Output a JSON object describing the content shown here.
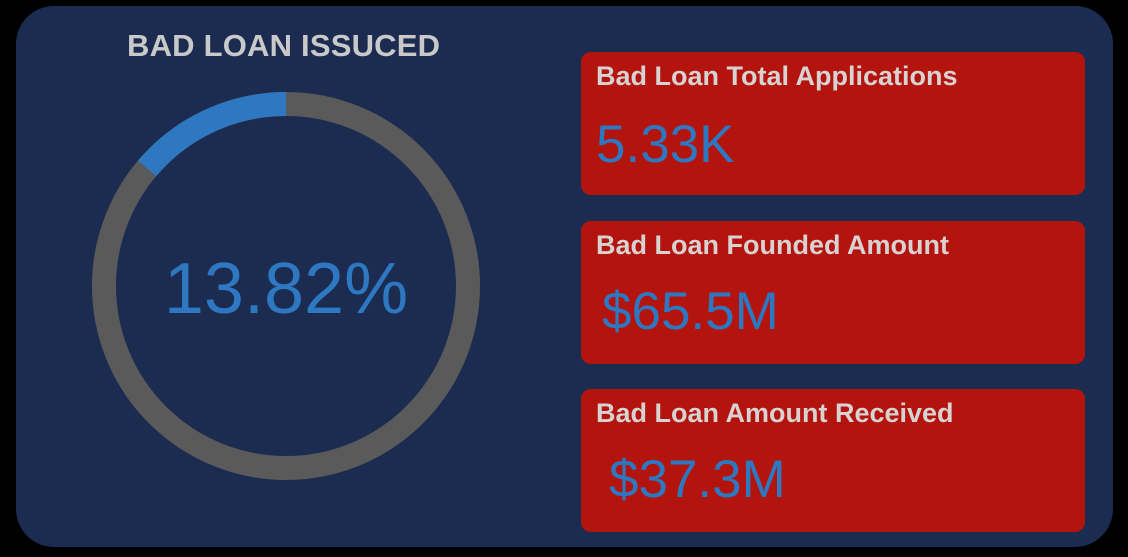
{
  "title": "BAD LOAN ISSUCED",
  "chart_data": {
    "type": "pie",
    "subtype": "donut",
    "title": "BAD LOAN ISSUCED",
    "center_label": "13.82%",
    "values": [
      13.82,
      86.18
    ],
    "colors": [
      "#2e77c1",
      "#5a5a5a"
    ]
  },
  "cards": [
    {
      "label": "Bad Loan Total Applications",
      "value": "5.33K"
    },
    {
      "label": "Bad Loan Founded Amount",
      "value": "$65.5M"
    },
    {
      "label": "Bad Loan Amount Received",
      "value": "$37.3M"
    }
  ],
  "colors": {
    "panel": "#1c2b50",
    "card": "#b3140d",
    "value": "#2e77c1",
    "label": "#d8d2d2",
    "track": "#5a5a5a"
  }
}
